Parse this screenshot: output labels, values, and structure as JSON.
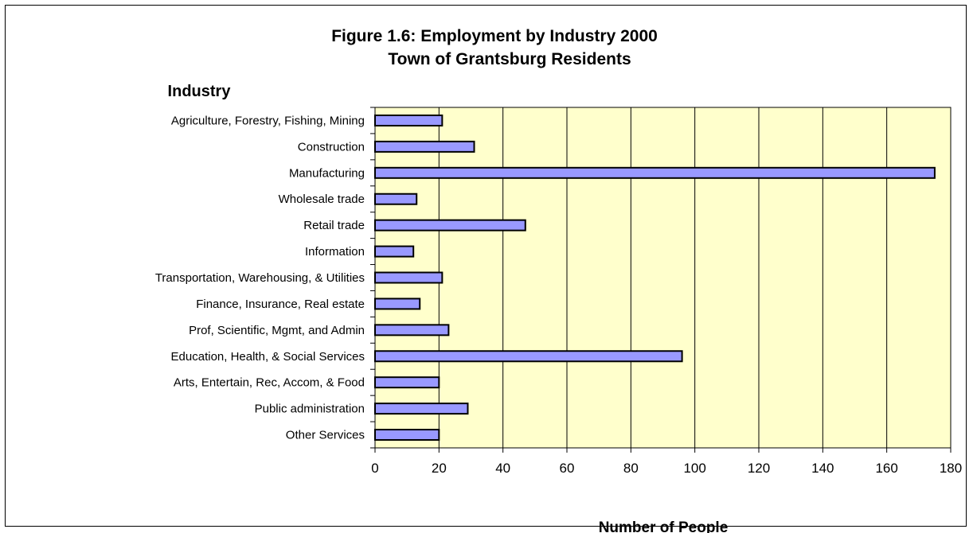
{
  "chart_data": {
    "type": "bar",
    "orientation": "horizontal",
    "title": "Figure 1.6: Employment by Industry 2000",
    "subtitle": "Town of Grantsburg Residents",
    "ylabel": "Industry",
    "xlabel": "Number of People",
    "categories": [
      "Agriculture, Forestry, Fishing, Mining",
      "Construction",
      "Manufacturing",
      "Wholesale trade",
      "Retail trade",
      "Information",
      "Transportation, Warehousing, & Utilities",
      "Finance, Insurance, Real estate",
      "Prof, Scientific, Mgmt, and Admin",
      "Education, Health, & Social Services",
      "Arts, Entertain, Rec, Accom, & Food",
      "Public administration",
      "Other Services"
    ],
    "values": [
      21,
      31,
      175,
      13,
      47,
      12,
      21,
      14,
      23,
      96,
      20,
      29,
      20
    ],
    "xlim": [
      0,
      180
    ],
    "xticks": [
      0,
      20,
      40,
      60,
      80,
      100,
      120,
      140,
      160,
      180
    ],
    "grid": "vertical",
    "legend": "none",
    "colors": {
      "bar_fill": "#9999ff",
      "bar_stroke": "#000000",
      "plot_background": "#ffffcc"
    }
  }
}
